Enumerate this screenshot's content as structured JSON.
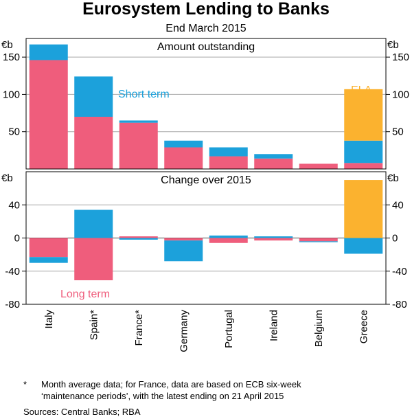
{
  "title": "Eurosystem Lending to Banks",
  "subtitle": "End March 2015",
  "footnote": {
    "marker": "*",
    "line1": "Month average data; for France, data are based on ECB six-week",
    "line2": "‘maintenance periods’, with the latest ending on 21 April 2015"
  },
  "sources": "Sources:   Central Banks; RBA",
  "colors": {
    "long_term": "#EF5D7C",
    "short_term": "#1CA1DB",
    "ela": "#FBB22F",
    "axis": "#000000",
    "grid": "#000000"
  },
  "chart_data": {
    "type": "bar",
    "categories": [
      "Italy",
      "Spain*",
      "France*",
      "Germany",
      "Portugal",
      "Ireland",
      "Belgium",
      "Greece"
    ],
    "panels": [
      {
        "id": "amount",
        "title": "Amount outstanding",
        "unit": "€b",
        "ylim": [
          0,
          175
        ],
        "ticks": [
          50,
          100,
          150
        ],
        "tick_labels": [
          "50",
          "100",
          "150"
        ],
        "stacked": true,
        "series": [
          {
            "name": "Long term",
            "color_key": "long_term",
            "values": [
              146,
              70,
              62,
              29,
              17,
              14,
              7,
              8
            ]
          },
          {
            "name": "Short term",
            "color_key": "short_term",
            "values": [
              21,
              54,
              3,
              9,
              12,
              6,
              0,
              30
            ]
          },
          {
            "name": "ELA",
            "color_key": "ela",
            "values": [
              0,
              0,
              0,
              0,
              0,
              0,
              0,
              69
            ]
          }
        ],
        "annotations": [
          {
            "text": "Short term",
            "color_key": "short_term"
          },
          {
            "text": "ELA",
            "color_key": "ela"
          }
        ]
      },
      {
        "id": "change",
        "title": "Change over 2015",
        "unit": "€b",
        "ylim": [
          -80,
          80
        ],
        "ticks": [
          -80,
          -40,
          0,
          40
        ],
        "tick_labels": [
          "-80",
          "-40",
          "0",
          "40"
        ],
        "stacked": true,
        "series": [
          {
            "name": "Long term",
            "color_key": "long_term",
            "values": [
              -23,
              -51,
              2,
              -3,
              -6,
              -3,
              -4,
              0
            ]
          },
          {
            "name": "Short term",
            "color_key": "short_term",
            "values": [
              -7,
              34,
              -2,
              -25,
              3,
              2,
              -1,
              -19
            ]
          },
          {
            "name": "ELA",
            "color_key": "ela",
            "values": [
              0,
              0,
              0,
              0,
              0,
              0,
              0,
              70
            ]
          }
        ],
        "annotations": [
          {
            "text": "Long term",
            "color_key": "long_term"
          }
        ]
      }
    ]
  }
}
